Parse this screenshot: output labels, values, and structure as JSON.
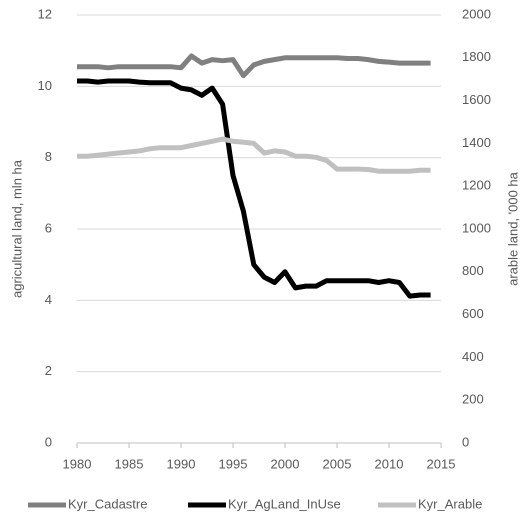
{
  "chart_data": {
    "type": "line",
    "y_label": "agricultural land, mln ha",
    "y2_label": "arable land, '000 ha",
    "x": [
      1980,
      1981,
      1982,
      1983,
      1984,
      1985,
      1986,
      1987,
      1988,
      1989,
      1990,
      1991,
      1992,
      1993,
      1994,
      1995,
      1996,
      1997,
      1998,
      1999,
      2000,
      2001,
      2002,
      2003,
      2004,
      2005,
      2006,
      2007,
      2008,
      2009,
      2010,
      2011,
      2012,
      2013,
      2014
    ],
    "xlim": [
      1980,
      2015
    ],
    "xticks": [
      1980,
      1985,
      1990,
      1995,
      2000,
      2005,
      2010,
      2015
    ],
    "ylim": [
      0,
      12
    ],
    "yticks": [
      0,
      2,
      4,
      6,
      8,
      10,
      12
    ],
    "y2lim": [
      0,
      2000
    ],
    "y2ticks": [
      0,
      200,
      400,
      600,
      800,
      1000,
      1200,
      1400,
      1600,
      1800,
      2000
    ],
    "grid": true,
    "legend": "bottom",
    "series": [
      {
        "name": "Kyr_Cadastre",
        "color": "#808080",
        "values": [
          10.55,
          10.55,
          10.55,
          10.52,
          10.55,
          10.55,
          10.55,
          10.55,
          10.55,
          10.55,
          10.52,
          10.85,
          10.65,
          10.75,
          10.72,
          10.75,
          10.3,
          10.6,
          10.7,
          10.75,
          10.8,
          10.8,
          10.8,
          10.8,
          10.8,
          10.8,
          10.78,
          10.78,
          10.75,
          10.7,
          10.68,
          10.65,
          10.65,
          10.65,
          10.65
        ]
      },
      {
        "name": "Kyr_AgLand_InUse",
        "color": "#000000",
        "values": [
          10.15,
          10.15,
          10.12,
          10.15,
          10.15,
          10.15,
          10.12,
          10.1,
          10.1,
          10.1,
          9.95,
          9.9,
          9.75,
          9.95,
          9.5,
          7.5,
          6.5,
          5.0,
          4.65,
          4.5,
          4.8,
          4.35,
          4.4,
          4.4,
          4.55,
          4.55,
          4.55,
          4.55,
          4.55,
          4.5,
          4.55,
          4.5,
          4.12,
          4.15,
          4.15
        ]
      },
      {
        "name": "Kyr_Arable",
        "color": "#c0c0c0",
        "axis": "y2",
        "values": [
          1340,
          1340,
          1345,
          1350,
          1355,
          1360,
          1365,
          1375,
          1380,
          1380,
          1380,
          1390,
          1400,
          1410,
          1420,
          1410,
          1405,
          1400,
          1355,
          1365,
          1360,
          1340,
          1340,
          1335,
          1320,
          1280,
          1280,
          1280,
          1278,
          1270,
          1270,
          1270,
          1270,
          1275,
          1275
        ]
      }
    ]
  }
}
